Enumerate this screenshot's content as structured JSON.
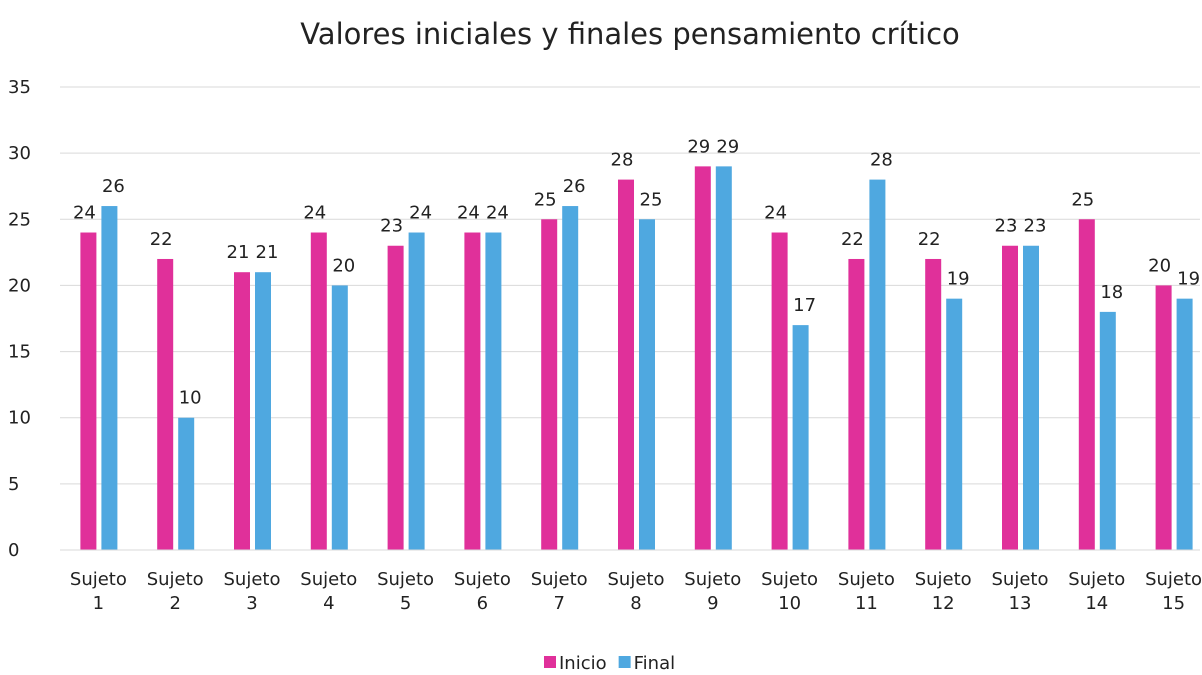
{
  "chart_data": {
    "type": "bar",
    "title": "Valores iniciales y finales pensamiento crítico",
    "categories": [
      "Sujeto 1",
      "Sujeto 2",
      "Sujeto 3",
      "Sujeto 4",
      "Sujeto 5",
      "Sujeto 6",
      "Sujeto 7",
      "Sujeto 8",
      "Sujeto 9",
      "Sujeto 10",
      "Sujeto 11",
      "Sujeto 12",
      "Sujeto 13",
      "Sujeto 14",
      "Sujeto 15"
    ],
    "series": [
      {
        "name": "Inicio",
        "color": "#e0309a",
        "values": [
          24,
          22,
          21,
          24,
          23,
          24,
          25,
          28,
          29,
          24,
          22,
          22,
          23,
          25,
          20
        ]
      },
      {
        "name": "Final",
        "color": "#4fa8e0",
        "values": [
          26,
          10,
          21,
          20,
          24,
          24,
          26,
          25,
          29,
          17,
          28,
          19,
          23,
          18,
          19
        ]
      }
    ],
    "ylim": [
      0,
      35
    ],
    "yticks": [
      0,
      5,
      10,
      15,
      20,
      25,
      30,
      35
    ],
    "grid": true,
    "legend": "bottom",
    "data_labels": true
  }
}
